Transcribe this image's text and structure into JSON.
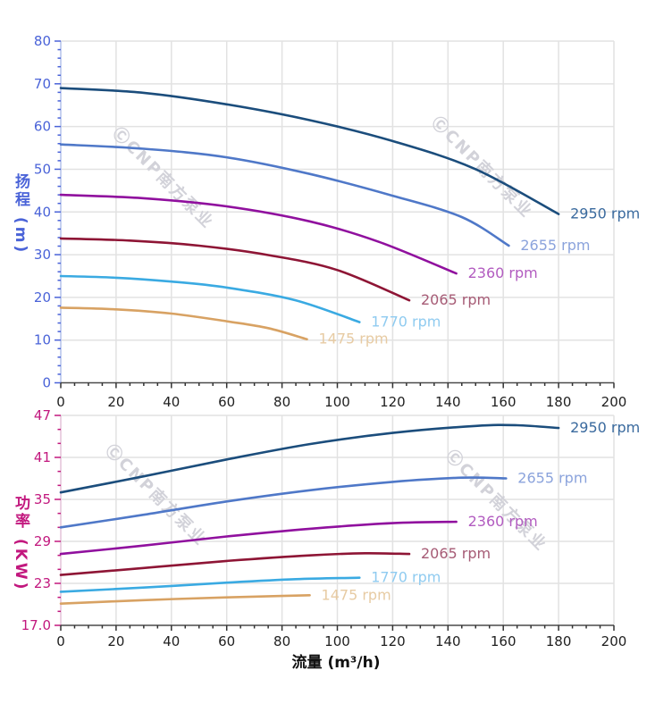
{
  "watermark": {
    "text": "ⒸCNP南方泵业",
    "color": "#d2d2d9"
  },
  "colors": {
    "grid": "#e2e2e2",
    "x_spine": "#4a4a4a",
    "x_tick": "#333333",
    "x_text": "#1f1f1f",
    "head_axis_text": "#4a63d8",
    "head_y_spine": "#b4c2ec",
    "power_axis_text": "#c2187e",
    "power_y_spine": "#e4c2d8"
  },
  "chart_data": [
    {
      "id": "head",
      "type": "line",
      "xlabel": "流量 (m³/h)",
      "ylabel": "扬程 (m)",
      "xlim": [
        0,
        200
      ],
      "ylim": [
        0,
        80
      ],
      "x_major": 20,
      "x_minor": 5,
      "y_major": 10,
      "y_minor": 2,
      "grid": true,
      "legend_position": "inline-right",
      "x_tick_labels": [
        "0",
        "20",
        "40",
        "60",
        "80",
        "100",
        "120",
        "140",
        "160",
        "180",
        "200"
      ],
      "y_tick_labels": [
        "0",
        "10",
        "20",
        "30",
        "40",
        "50",
        "60",
        "70",
        "80"
      ],
      "series": [
        {
          "name": "2950 rpm",
          "color": "#1b4d7c",
          "label_color": "#3a6a9e",
          "points": [
            [
              0,
              69
            ],
            [
              30,
              67.9
            ],
            [
              60,
              65.2
            ],
            [
              90,
              61.5
            ],
            [
              120,
              56.6
            ],
            [
              150,
              50.0
            ],
            [
              180,
              39.5
            ]
          ]
        },
        {
          "name": "2655 rpm",
          "color": "#4f78c8",
          "label_color": "#8ba3dc",
          "points": [
            [
              0,
              55.8
            ],
            [
              30,
              54.8
            ],
            [
              60,
              52.8
            ],
            [
              90,
              48.9
            ],
            [
              120,
              43.8
            ],
            [
              145,
              38.8
            ],
            [
              162,
              32.1
            ]
          ]
        },
        {
          "name": "2360 rpm",
          "color": "#90109e",
          "label_color": "#b25cc0",
          "points": [
            [
              0,
              44
            ],
            [
              30,
              43.2
            ],
            [
              60,
              41.3
            ],
            [
              90,
              37.8
            ],
            [
              115,
              33.0
            ],
            [
              143,
              25.6
            ]
          ]
        },
        {
          "name": "2065 rpm",
          "color": "#8e1535",
          "label_color": "#a65b75",
          "points": [
            [
              0,
              33.8
            ],
            [
              25,
              33.3
            ],
            [
              50,
              32.1
            ],
            [
              75,
              29.9
            ],
            [
              100,
              26.4
            ],
            [
              126,
              19.3
            ]
          ]
        },
        {
          "name": "1770 rpm",
          "color": "#3aaae2",
          "label_color": "#8fcbf0",
          "points": [
            [
              0,
              25
            ],
            [
              20,
              24.6
            ],
            [
              40,
              23.7
            ],
            [
              60,
              22.3
            ],
            [
              85,
              19.3
            ],
            [
              108,
              14.2
            ]
          ]
        },
        {
          "name": "1475 rpm",
          "color": "#d8a263",
          "label_color": "#e7cba3",
          "points": [
            [
              0,
              17.6
            ],
            [
              20,
              17.2
            ],
            [
              40,
              16.2
            ],
            [
              60,
              14.4
            ],
            [
              75,
              12.8
            ],
            [
              89,
              10.2
            ]
          ]
        }
      ]
    },
    {
      "id": "power",
      "type": "line",
      "xlabel": "流量 (m³/h)",
      "ylabel": "功率 (KW)",
      "xlim": [
        0,
        200
      ],
      "ylim": [
        17,
        47
      ],
      "x_major": 20,
      "x_minor": 5,
      "y_major": 6,
      "y_minor": 2,
      "grid": true,
      "legend_position": "inline-right",
      "x_tick_labels": [
        "0",
        "20",
        "40",
        "60",
        "80",
        "100",
        "120",
        "140",
        "160",
        "180",
        "200"
      ],
      "y_tick_labels": [
        "17.0",
        "23",
        "29",
        "35",
        "41",
        "47"
      ],
      "series": [
        {
          "name": "2950 rpm",
          "color": "#1b4d7c",
          "label_color": "#3a6a9e",
          "points": [
            [
              0,
              36
            ],
            [
              30,
              38.3
            ],
            [
              60,
              40.7
            ],
            [
              90,
              42.9
            ],
            [
              120,
              44.5
            ],
            [
              150,
              45.5
            ],
            [
              165,
              45.6
            ],
            [
              180,
              45.2
            ]
          ]
        },
        {
          "name": "2655 rpm",
          "color": "#4f78c8",
          "label_color": "#8ba3dc",
          "points": [
            [
              0,
              31
            ],
            [
              30,
              32.8
            ],
            [
              60,
              34.7
            ],
            [
              90,
              36.3
            ],
            [
              120,
              37.5
            ],
            [
              145,
              38.1
            ],
            [
              161,
              38.0
            ]
          ]
        },
        {
          "name": "2360 rpm",
          "color": "#90109e",
          "label_color": "#b25cc0",
          "points": [
            [
              0,
              27.2
            ],
            [
              30,
              28.4
            ],
            [
              60,
              29.7
            ],
            [
              90,
              30.8
            ],
            [
              120,
              31.6
            ],
            [
              143,
              31.8
            ]
          ]
        },
        {
          "name": "2065 rpm",
          "color": "#8e1535",
          "label_color": "#a65b75",
          "points": [
            [
              0,
              24.2
            ],
            [
              30,
              25.2
            ],
            [
              60,
              26.2
            ],
            [
              90,
              27.0
            ],
            [
              110,
              27.3
            ],
            [
              126,
              27.2
            ]
          ]
        },
        {
          "name": "1770 rpm",
          "color": "#3aaae2",
          "label_color": "#8fcbf0",
          "points": [
            [
              0,
              21.8
            ],
            [
              30,
              22.4
            ],
            [
              60,
              23.1
            ],
            [
              85,
              23.6
            ],
            [
              108,
              23.8
            ]
          ]
        },
        {
          "name": "1475 rpm",
          "color": "#d8a263",
          "label_color": "#e7cba3",
          "points": [
            [
              0,
              20.1
            ],
            [
              30,
              20.6
            ],
            [
              60,
              21.0
            ],
            [
              80,
              21.2
            ],
            [
              90,
              21.3
            ]
          ]
        }
      ]
    }
  ]
}
